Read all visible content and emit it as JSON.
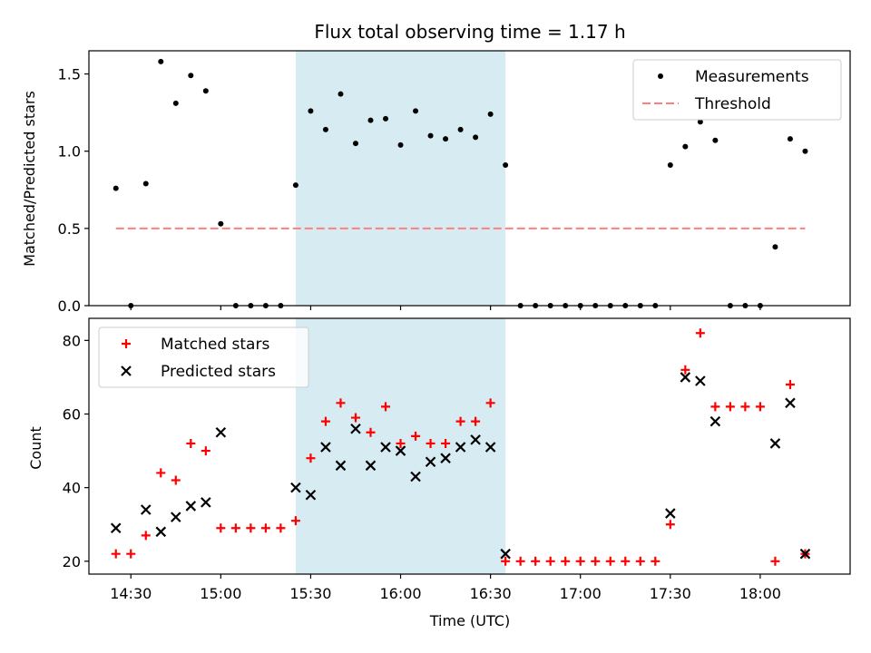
{
  "chart_data": [
    {
      "type": "scatter",
      "title": "Flux total observing time = 1.17 h",
      "ylabel": "Matched/Predicted stars",
      "xlim": [
        "14:16",
        "18:30"
      ],
      "ylim": [
        0,
        1.65
      ],
      "yticks": [
        "0.0",
        "0.5",
        "1.0",
        "1.5"
      ],
      "highlight": {
        "start": "15:25",
        "end": "16:35",
        "color": "#add8e6"
      },
      "legend": {
        "position": "top-right",
        "entries": [
          "Measurements",
          "Threshold"
        ]
      },
      "series": [
        {
          "name": "Measurements",
          "marker": "dot",
          "color": "#000000",
          "x": [
            "14:25",
            "14:30",
            "14:35",
            "14:40",
            "14:45",
            "14:50",
            "14:55",
            "15:00",
            "15:05",
            "15:10",
            "15:15",
            "15:20",
            "15:25",
            "15:30",
            "15:35",
            "15:40",
            "15:45",
            "15:50",
            "15:55",
            "16:00",
            "16:05",
            "16:10",
            "16:15",
            "16:20",
            "16:25",
            "16:30",
            "16:35",
            "16:40",
            "16:45",
            "16:50",
            "16:55",
            "17:00",
            "17:05",
            "17:10",
            "17:15",
            "17:20",
            "17:25",
            "17:30",
            "17:35",
            "17:40",
            "17:45",
            "17:50",
            "17:55",
            "18:00",
            "18:05",
            "18:10",
            "18:15"
          ],
          "y": [
            0.76,
            0,
            0.79,
            1.58,
            1.31,
            1.49,
            1.39,
            0.53,
            0,
            0,
            0,
            0,
            0.78,
            1.26,
            1.14,
            1.37,
            1.05,
            1.2,
            1.21,
            1.04,
            1.26,
            1.1,
            1.08,
            1.14,
            1.09,
            1.24,
            0.91,
            0,
            0,
            0,
            0,
            0,
            0,
            0,
            0,
            0,
            0,
            0.91,
            1.03,
            1.19,
            1.07,
            0,
            0,
            0,
            0.38,
            1.08,
            1.0
          ]
        },
        {
          "name": "Threshold",
          "style": "dashed",
          "color": "#ff7f7f",
          "x": [
            "14:25",
            "18:15"
          ],
          "y": [
            0.5,
            0.5
          ]
        }
      ]
    },
    {
      "type": "scatter",
      "xlabel": "Time (UTC)",
      "ylabel": "Count",
      "xlim": [
        "14:16",
        "18:30"
      ],
      "ylim": [
        16.5,
        86
      ],
      "xticks": [
        "14:30",
        "15:00",
        "15:30",
        "16:00",
        "16:30",
        "17:00",
        "17:30",
        "18:00"
      ],
      "yticks": [
        "20",
        "40",
        "60",
        "80"
      ],
      "highlight": {
        "start": "15:25",
        "end": "16:35",
        "color": "#add8e6"
      },
      "legend": {
        "position": "top-left",
        "entries": [
          "Matched stars",
          "Predicted stars"
        ]
      },
      "series": [
        {
          "name": "Matched stars",
          "marker": "plus",
          "color": "#ff0000",
          "x": [
            "14:25",
            "14:30",
            "14:35",
            "14:40",
            "14:45",
            "14:50",
            "14:55",
            "15:00",
            "15:05",
            "15:10",
            "15:15",
            "15:20",
            "15:25",
            "15:30",
            "15:35",
            "15:40",
            "15:45",
            "15:50",
            "15:55",
            "16:00",
            "16:05",
            "16:10",
            "16:15",
            "16:20",
            "16:25",
            "16:30",
            "16:35",
            "16:40",
            "16:45",
            "16:50",
            "16:55",
            "17:00",
            "17:05",
            "17:10",
            "17:15",
            "17:20",
            "17:25",
            "17:30",
            "17:35",
            "17:40",
            "17:45",
            "17:50",
            "17:55",
            "18:00",
            "18:05",
            "18:10",
            "18:15"
          ],
          "y": [
            22,
            22,
            27,
            44,
            42,
            52,
            50,
            29,
            29,
            29,
            29,
            29,
            31,
            48,
            58,
            63,
            59,
            55,
            62,
            52,
            54,
            52,
            52,
            58,
            58,
            63,
            20,
            20,
            20,
            20,
            20,
            20,
            20,
            20,
            20,
            20,
            20,
            30,
            72,
            82,
            62,
            62,
            62,
            62,
            20,
            68,
            22
          ]
        },
        {
          "name": "Predicted stars",
          "marker": "x",
          "color": "#000000",
          "x": [
            "14:25",
            "14:35",
            "14:40",
            "14:45",
            "14:50",
            "14:55",
            "15:00",
            "15:25",
            "15:30",
            "15:35",
            "15:40",
            "15:45",
            "15:50",
            "15:55",
            "16:00",
            "16:05",
            "16:10",
            "16:15",
            "16:20",
            "16:25",
            "16:30",
            "16:35",
            "17:30",
            "17:35",
            "17:40",
            "17:45",
            "18:05",
            "18:10",
            "18:15"
          ],
          "y": [
            29,
            34,
            28,
            32,
            35,
            36,
            55,
            40,
            38,
            51,
            46,
            56,
            46,
            51,
            50,
            43,
            47,
            48,
            51,
            53,
            51,
            22,
            33,
            70,
            69,
            58,
            52,
            63,
            22
          ]
        }
      ]
    }
  ]
}
